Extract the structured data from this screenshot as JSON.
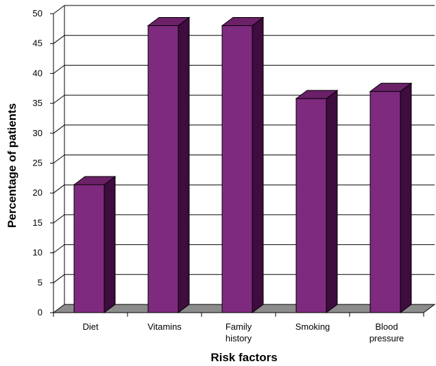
{
  "chart_data": {
    "type": "bar",
    "style": "3d",
    "categories": [
      [
        "Diet"
      ],
      [
        "Vitamins"
      ],
      [
        "Family",
        "history"
      ],
      [
        "Smoking"
      ],
      [
        "Blood",
        "pressure"
      ]
    ],
    "values": [
      21.4,
      48,
      48,
      35.8,
      37
    ],
    "xlabel": "Risk factors",
    "ylabel": "Percentage of patients",
    "ylim": [
      0,
      50
    ],
    "yticks": [
      0,
      5,
      10,
      15,
      20,
      25,
      30,
      35,
      40,
      45,
      50
    ],
    "grid": true,
    "legend": "none",
    "colors": {
      "bar_front": "#7e2a7e",
      "bar_side": "#3e0c3e",
      "bar_top": "#6b2068",
      "floor": "#8c8c8c",
      "grid": "#000000"
    }
  }
}
